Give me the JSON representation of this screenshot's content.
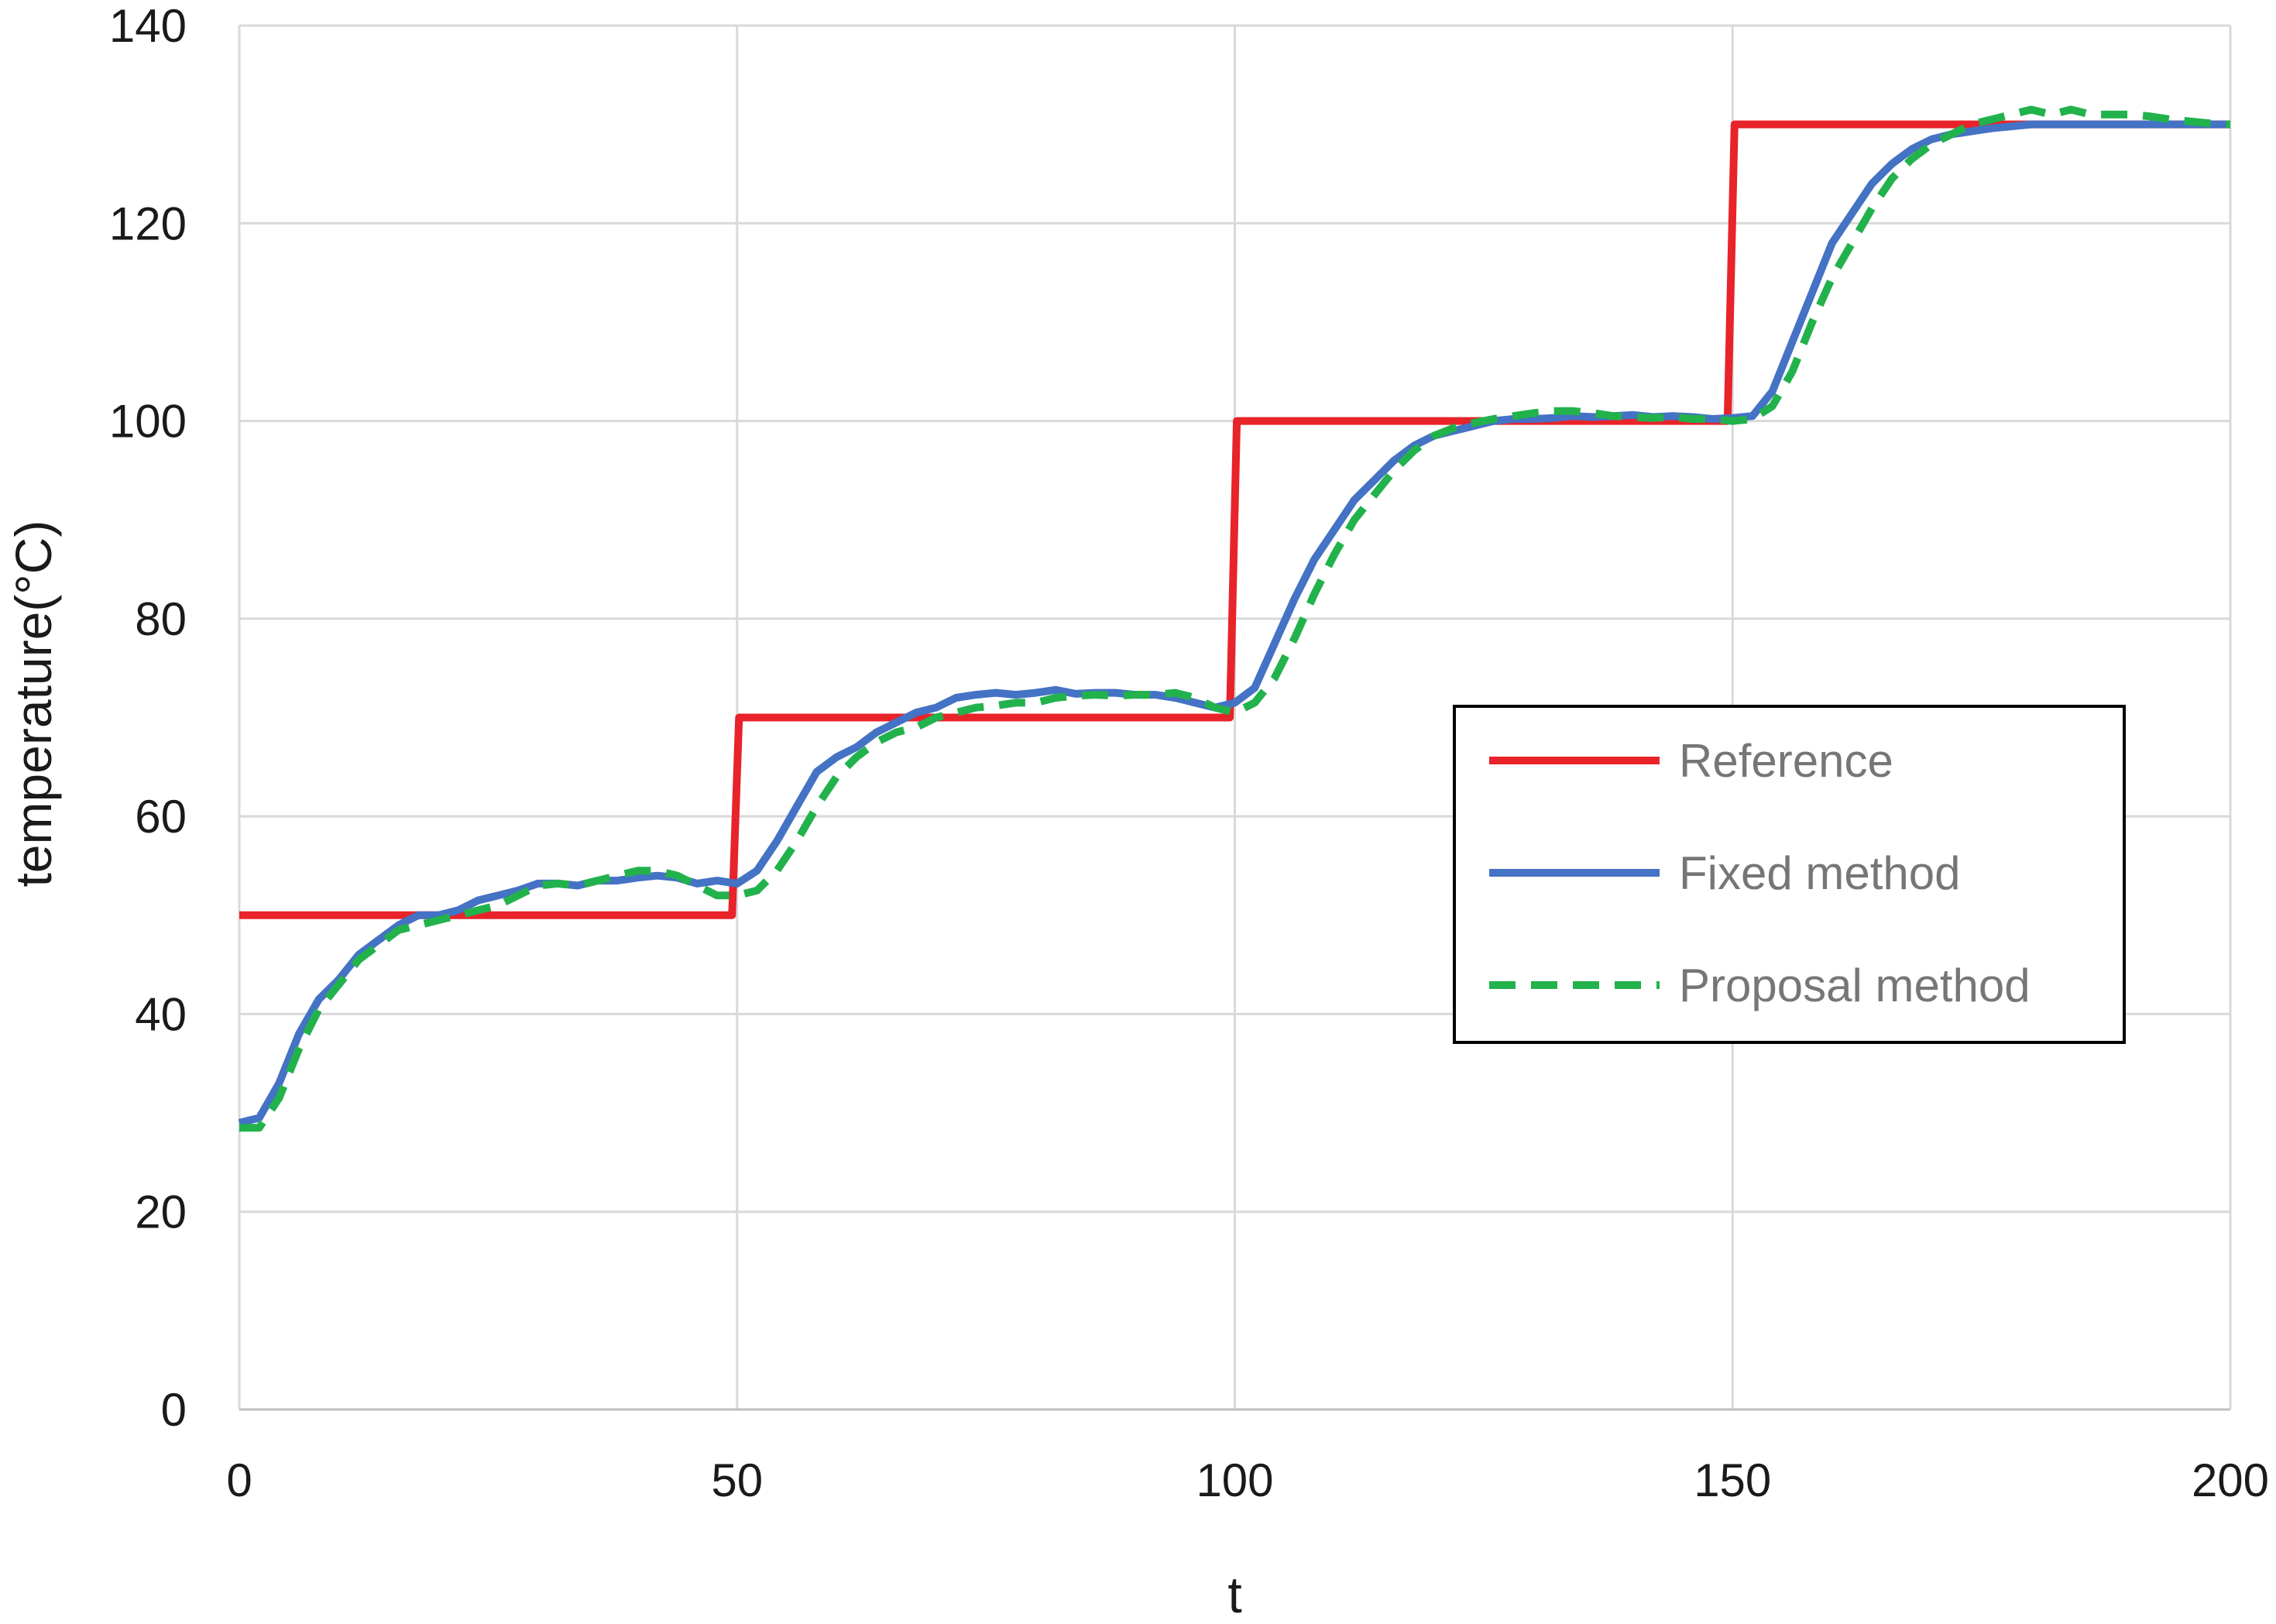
{
  "chart_data": {
    "type": "line",
    "title": "",
    "xlabel": "t",
    "ylabel": "temperature(°C)",
    "xlim": [
      0,
      200
    ],
    "ylim": [
      0,
      140
    ],
    "x_ticks": [
      0,
      50,
      100,
      150,
      200
    ],
    "y_ticks": [
      0,
      20,
      40,
      60,
      80,
      100,
      120,
      140
    ],
    "x_tick_labels": [
      "0",
      "50",
      "100",
      "150",
      "200"
    ],
    "y_tick_labels": [
      "0",
      "20",
      "40",
      "60",
      "80",
      "100",
      "120",
      "140"
    ],
    "grid": true,
    "legend_position": "right",
    "series": [
      {
        "name": "Reference",
        "color": "#e8232a",
        "style": "solid",
        "points": [
          [
            0,
            50
          ],
          [
            49.5,
            50
          ],
          [
            50.2,
            70
          ],
          [
            99.5,
            70
          ],
          [
            100.2,
            100
          ],
          [
            149.5,
            100
          ],
          [
            150.2,
            130
          ],
          [
            200,
            130
          ]
        ]
      },
      {
        "name": "Fixed method",
        "color": "#4472c4",
        "style": "solid",
        "points": [
          [
            0,
            29
          ],
          [
            2,
            29.5
          ],
          [
            4,
            33
          ],
          [
            6,
            38
          ],
          [
            8,
            41.5
          ],
          [
            10,
            43.5
          ],
          [
            12,
            46
          ],
          [
            14,
            47.5
          ],
          [
            16,
            49
          ],
          [
            18,
            50
          ],
          [
            20,
            50
          ],
          [
            22,
            50.5
          ],
          [
            24,
            51.5
          ],
          [
            26,
            52
          ],
          [
            28,
            52.5
          ],
          [
            30,
            53.2
          ],
          [
            32,
            53.2
          ],
          [
            34,
            53
          ],
          [
            36,
            53.5
          ],
          [
            38,
            53.5
          ],
          [
            40,
            53.8
          ],
          [
            42,
            54
          ],
          [
            44,
            53.8
          ],
          [
            46,
            53.2
          ],
          [
            48,
            53.5
          ],
          [
            50,
            53.2
          ],
          [
            52,
            54.5
          ],
          [
            54,
            57.5
          ],
          [
            56,
            61
          ],
          [
            58,
            64.5
          ],
          [
            60,
            66
          ],
          [
            62,
            67
          ],
          [
            64,
            68.5
          ],
          [
            66,
            69.5
          ],
          [
            68,
            70.5
          ],
          [
            70,
            71
          ],
          [
            72,
            72
          ],
          [
            74,
            72.3
          ],
          [
            76,
            72.5
          ],
          [
            78,
            72.3
          ],
          [
            80,
            72.5
          ],
          [
            82,
            72.8
          ],
          [
            84,
            72.4
          ],
          [
            86,
            72.5
          ],
          [
            88,
            72.5
          ],
          [
            90,
            72.3
          ],
          [
            92,
            72.3
          ],
          [
            94,
            72
          ],
          [
            96,
            71.5
          ],
          [
            98,
            71
          ],
          [
            100,
            71.5
          ],
          [
            102,
            73
          ],
          [
            104,
            77.5
          ],
          [
            106,
            82
          ],
          [
            108,
            86
          ],
          [
            110,
            89
          ],
          [
            112,
            92
          ],
          [
            114,
            94
          ],
          [
            116,
            96
          ],
          [
            118,
            97.5
          ],
          [
            120,
            98.5
          ],
          [
            122,
            99
          ],
          [
            124,
            99.5
          ],
          [
            126,
            100
          ],
          [
            128,
            100.2
          ],
          [
            130,
            100.2
          ],
          [
            132,
            100.3
          ],
          [
            134,
            100.5
          ],
          [
            136,
            100.4
          ],
          [
            138,
            100.5
          ],
          [
            140,
            100.6
          ],
          [
            142,
            100.4
          ],
          [
            144,
            100.5
          ],
          [
            146,
            100.4
          ],
          [
            148,
            100.2
          ],
          [
            150,
            100.3
          ],
          [
            152,
            100.5
          ],
          [
            154,
            103
          ],
          [
            156,
            108
          ],
          [
            158,
            113
          ],
          [
            160,
            118
          ],
          [
            162,
            121
          ],
          [
            164,
            124
          ],
          [
            166,
            126
          ],
          [
            168,
            127.5
          ],
          [
            170,
            128.5
          ],
          [
            172,
            129
          ],
          [
            174,
            129.3
          ],
          [
            176,
            129.6
          ],
          [
            178,
            129.8
          ],
          [
            180,
            130
          ],
          [
            184,
            130
          ],
          [
            188,
            130
          ],
          [
            192,
            130
          ],
          [
            196,
            130
          ],
          [
            200,
            130
          ]
        ]
      },
      {
        "name": "Proposal method",
        "color": "#22b24c",
        "style": "dashed",
        "points": [
          [
            0,
            28.5
          ],
          [
            2,
            28.5
          ],
          [
            4,
            31.5
          ],
          [
            6,
            36.5
          ],
          [
            8,
            40.5
          ],
          [
            10,
            43
          ],
          [
            12,
            45.5
          ],
          [
            14,
            47
          ],
          [
            16,
            48.5
          ],
          [
            18,
            49
          ],
          [
            20,
            49.5
          ],
          [
            22,
            50
          ],
          [
            24,
            50.5
          ],
          [
            26,
            51
          ],
          [
            28,
            52
          ],
          [
            30,
            53
          ],
          [
            32,
            53.2
          ],
          [
            34,
            53
          ],
          [
            36,
            53.5
          ],
          [
            38,
            54
          ],
          [
            40,
            54.5
          ],
          [
            42,
            54.5
          ],
          [
            44,
            54
          ],
          [
            46,
            53
          ],
          [
            48,
            52
          ],
          [
            50,
            52
          ],
          [
            52,
            52.5
          ],
          [
            54,
            54.5
          ],
          [
            56,
            57.5
          ],
          [
            58,
            61
          ],
          [
            60,
            64
          ],
          [
            62,
            66
          ],
          [
            64,
            67.5
          ],
          [
            66,
            68.5
          ],
          [
            68,
            69
          ],
          [
            70,
            70
          ],
          [
            72,
            70.5
          ],
          [
            74,
            71
          ],
          [
            76,
            71.2
          ],
          [
            78,
            71.5
          ],
          [
            80,
            71.5
          ],
          [
            82,
            72
          ],
          [
            84,
            72.2
          ],
          [
            86,
            72.3
          ],
          [
            88,
            72.2
          ],
          [
            90,
            72.3
          ],
          [
            92,
            72.3
          ],
          [
            94,
            72.5
          ],
          [
            96,
            72
          ],
          [
            98,
            71
          ],
          [
            100,
            70.5
          ],
          [
            102,
            71.5
          ],
          [
            104,
            74
          ],
          [
            106,
            78
          ],
          [
            108,
            82.5
          ],
          [
            110,
            86.5
          ],
          [
            112,
            90
          ],
          [
            114,
            92.5
          ],
          [
            116,
            95
          ],
          [
            118,
            97
          ],
          [
            120,
            98.5
          ],
          [
            122,
            99.3
          ],
          [
            124,
            99.8
          ],
          [
            126,
            100.2
          ],
          [
            128,
            100.5
          ],
          [
            130,
            100.8
          ],
          [
            132,
            101
          ],
          [
            134,
            101
          ],
          [
            136,
            100.8
          ],
          [
            138,
            100.5
          ],
          [
            140,
            100.4
          ],
          [
            142,
            100.3
          ],
          [
            144,
            100.4
          ],
          [
            146,
            100.2
          ],
          [
            148,
            100.2
          ],
          [
            150,
            100
          ],
          [
            152,
            100.2
          ],
          [
            154,
            101.5
          ],
          [
            156,
            105
          ],
          [
            158,
            110
          ],
          [
            160,
            114.5
          ],
          [
            162,
            118
          ],
          [
            164,
            121.5
          ],
          [
            166,
            124.5
          ],
          [
            168,
            126.5
          ],
          [
            170,
            128
          ],
          [
            172,
            129
          ],
          [
            174,
            130
          ],
          [
            176,
            130.5
          ],
          [
            178,
            131
          ],
          [
            180,
            131.5
          ],
          [
            182,
            131
          ],
          [
            184,
            131.5
          ],
          [
            186,
            131
          ],
          [
            188,
            131
          ],
          [
            190,
            131
          ],
          [
            192,
            130.8
          ],
          [
            194,
            130.5
          ],
          [
            196,
            130.3
          ],
          [
            198,
            130.1
          ],
          [
            200,
            130
          ]
        ]
      }
    ]
  }
}
